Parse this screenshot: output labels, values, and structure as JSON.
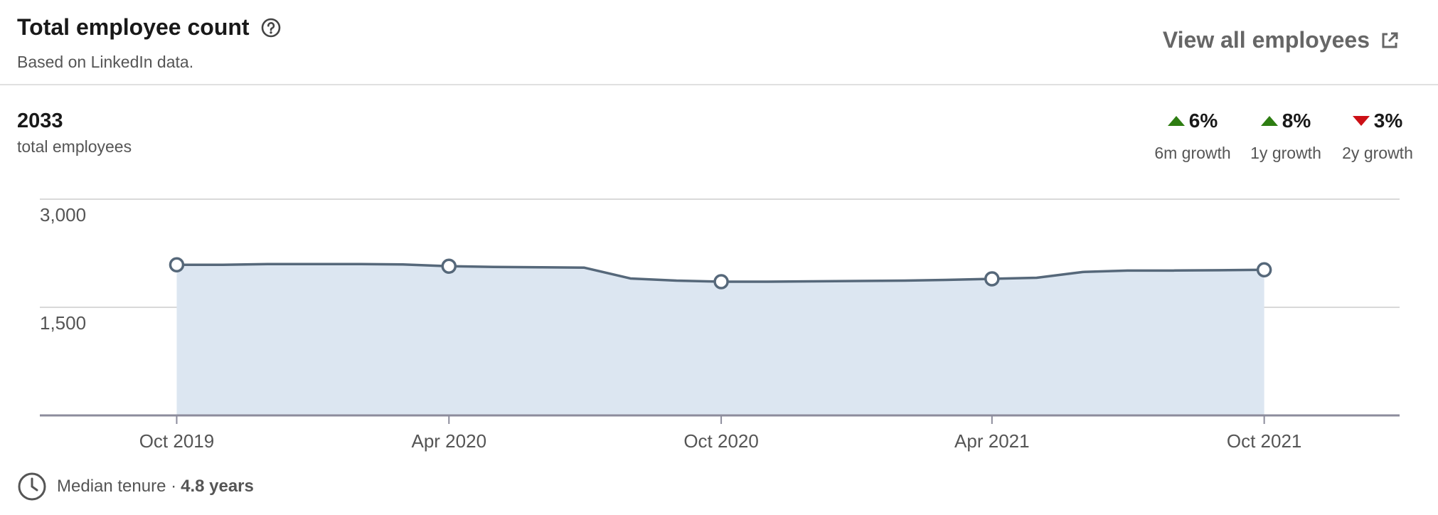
{
  "header": {
    "title": "Total employee count",
    "subtitle": "Based on LinkedIn data.",
    "view_all_label": "View all employees"
  },
  "summary": {
    "count": "2033",
    "count_label": "total employees"
  },
  "growth": [
    {
      "value": "6%",
      "label": "6m growth",
      "direction": "up"
    },
    {
      "value": "8%",
      "label": "1y growth",
      "direction": "up"
    },
    {
      "value": "3%",
      "label": "2y growth",
      "direction": "down"
    }
  ],
  "footer": {
    "tenure_label": "Median tenure",
    "tenure_separator": "·",
    "tenure_value": "4.8 years"
  },
  "colors": {
    "line": "#56687a",
    "fill": "#dce6f1",
    "up": "#2e7d12",
    "down": "#cc1016",
    "grid": "#d9d9d9"
  },
  "chart_data": {
    "type": "area",
    "ylim": [
      0,
      3000
    ],
    "yticks": [
      1500,
      3000
    ],
    "ytick_labels": [
      "1,500",
      "3,000"
    ],
    "x_range": [
      "2019-07-01",
      "2021-12-31"
    ],
    "xticks": [
      "Oct 2019",
      "Apr 2020",
      "Oct 2020",
      "Apr 2021",
      "Oct 2021"
    ],
    "series": [
      {
        "x": [
          "2019-10",
          "2019-11",
          "2019-12",
          "2020-01",
          "2020-02",
          "2020-03",
          "2020-04",
          "2020-05",
          "2020-06",
          "2020-07",
          "2020-08",
          "2020-09",
          "2020-10",
          "2020-11",
          "2020-12",
          "2021-01",
          "2021-02",
          "2021-03",
          "2021-04",
          "2021-05",
          "2021-06",
          "2021-07",
          "2021-08",
          "2021-09",
          "2021-10"
        ],
        "values": [
          2090,
          2090,
          2100,
          2100,
          2100,
          2095,
          2070,
          2060,
          2055,
          2050,
          1900,
          1870,
          1855,
          1855,
          1860,
          1865,
          1870,
          1880,
          1895,
          1910,
          1990,
          2010,
          2010,
          2015,
          2020
        ],
        "markers": [
          "2019-10",
          "2020-04",
          "2020-10",
          "2021-04",
          "2021-10"
        ]
      }
    ],
    "grid": true,
    "legend": "none"
  }
}
